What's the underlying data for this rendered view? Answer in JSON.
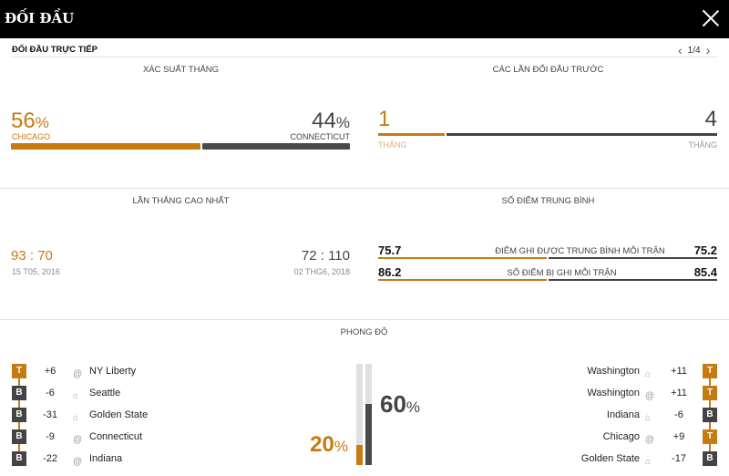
{
  "header": {
    "title": "ĐỐI ĐẦU",
    "close_icon": "close-icon"
  },
  "subheader": {
    "title": "ĐỐI ĐẦU TRỰC TIẾP",
    "page": "1/4"
  },
  "colors": {
    "team_a": "#c67a12",
    "team_b": "#444444"
  },
  "win_probability": {
    "title": "XÁC SUẤT THẮNG",
    "team_a": {
      "value": "56",
      "unit": "%",
      "name": "CHICAGO"
    },
    "team_b": {
      "value": "44",
      "unit": "%",
      "name": "CONNECTICUT"
    }
  },
  "previous_meetings": {
    "title": "CÁC LẦN ĐỐI ĐẦU TRƯỚC",
    "team_a": {
      "value": "1",
      "label": "THẮNG"
    },
    "team_b": {
      "value": "4",
      "label": "THẮNG"
    }
  },
  "biggest_win": {
    "title": "LẦN THẮNG CAO NHẤT",
    "team_a": {
      "score_a": "93",
      "sep": ":",
      "score_b": "70",
      "date": "15 T05, 2016"
    },
    "team_b": {
      "score_a": "72",
      "sep": ":",
      "score_b": "110",
      "date": "02 THG6, 2018"
    }
  },
  "average_points": {
    "title": "SỐ ĐIỂM TRUNG BÌNH",
    "rows": [
      {
        "label": "ĐIỂM GHI ĐƯỢC TRUNG BÌNH MỖI TRẬN",
        "a": "75.7",
        "b": "75.2"
      },
      {
        "label": "SỐ ĐIỂM BỊ GHI MỖI TRẬN",
        "a": "86.2",
        "b": "85.4"
      }
    ]
  },
  "form": {
    "title": "PHONG ĐỘ",
    "team_a": {
      "pct": "20",
      "unit": "%",
      "value": 20,
      "games": [
        {
          "r": "T",
          "diff": "+6",
          "loc": "away",
          "opp": "NY Liberty"
        },
        {
          "r": "B",
          "diff": "-6",
          "loc": "home",
          "opp": "Seattle"
        },
        {
          "r": "B",
          "diff": "-31",
          "loc": "home",
          "opp": "Golden State"
        },
        {
          "r": "B",
          "diff": "-9",
          "loc": "away",
          "opp": "Connecticut"
        },
        {
          "r": "B",
          "diff": "-22",
          "loc": "away",
          "opp": "Indiana"
        }
      ]
    },
    "team_b": {
      "pct": "60",
      "unit": "%",
      "value": 60,
      "games": [
        {
          "r": "T",
          "diff": "+11",
          "loc": "home",
          "opp": "Washington"
        },
        {
          "r": "T",
          "diff": "+11",
          "loc": "away",
          "opp": "Washington"
        },
        {
          "r": "B",
          "diff": "-6",
          "loc": "home",
          "opp": "Indiana"
        },
        {
          "r": "T",
          "diff": "+9",
          "loc": "away",
          "opp": "Chicago"
        },
        {
          "r": "B",
          "diff": "-17",
          "loc": "home",
          "opp": "Golden State"
        }
      ]
    }
  }
}
